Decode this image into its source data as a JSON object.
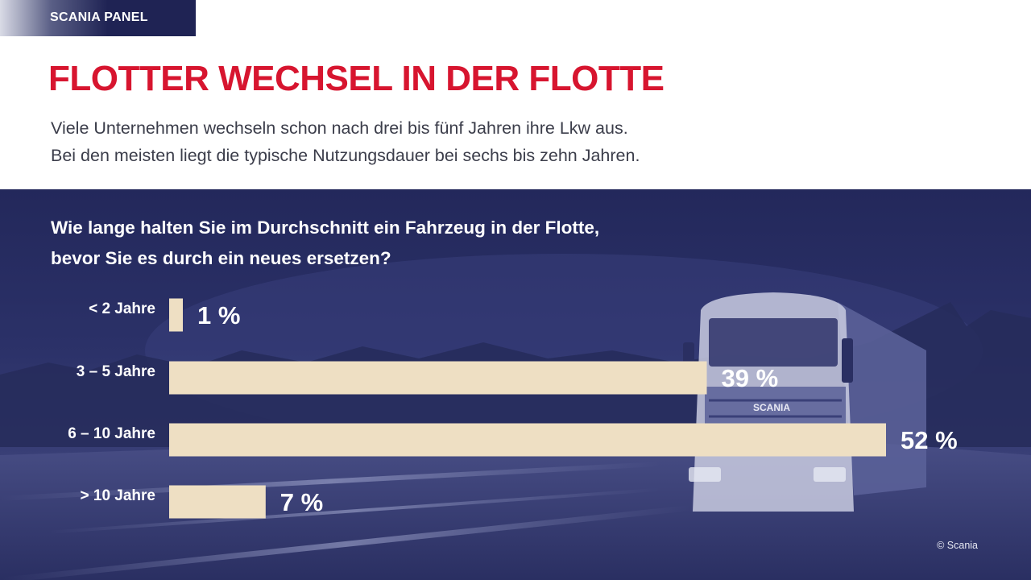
{
  "badge": "SCANIA PANEL",
  "title": "FLOTTER WECHSEL IN DER FLOTTE",
  "subtitle_lines": [
    "Viele Unternehmen wechseln schon nach drei bis fünf Jahren ihre Lkw aus.",
    "Bei den meisten liegt die typische Nutzungsdauer bei sechs bis zehn Jahren."
  ],
  "question_lines": [
    "Wie lange halten Sie im Durchschnitt ein Fahrzeug in der Flotte,",
    "bevor Sie es durch ein neues ersetzen?"
  ],
  "truck_brand": "SCANIA",
  "copyright": "© Scania",
  "colors": {
    "title_red": "#d7152f",
    "bar_beige": "#eedfc3",
    "background_navy": "#23285b"
  },
  "chart_data": {
    "type": "bar",
    "orientation": "horizontal",
    "categories": [
      "< 2 Jahre",
      "3 – 5 Jahre",
      "6 – 10 Jahre",
      "> 10 Jahre"
    ],
    "values": [
      1,
      39,
      52,
      7
    ],
    "value_labels": [
      "1 %",
      "39 %",
      "52 %",
      "7 %"
    ],
    "unit": "%",
    "xlim": [
      0,
      52
    ],
    "grid": false
  }
}
